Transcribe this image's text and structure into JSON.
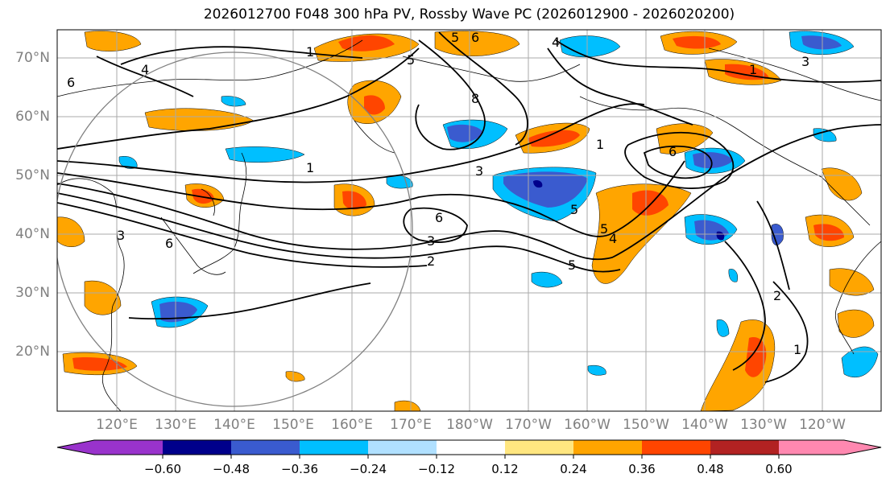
{
  "title": "2026012700 F048 300 hPa PV, Rossby Wave PC (2026012900 - 2026020200)",
  "lat_labels": [
    "70°N",
    "60°N",
    "50°N",
    "40°N",
    "30°N",
    "20°N"
  ],
  "lon_labels": [
    "120°E",
    "130°E",
    "140°E",
    "150°E",
    "160°E",
    "170°E",
    "180°W",
    "170°W",
    "160°W",
    "150°W",
    "140°W",
    "130°W",
    "120°W"
  ],
  "colorbar": {
    "ticks": [
      "−0.60",
      "−0.48",
      "−0.36",
      "−0.24",
      "−0.12",
      "0.12",
      "0.24",
      "0.36",
      "0.48",
      "0.60"
    ],
    "colors": [
      "#9933cc",
      "#00008b",
      "#3a5bcf",
      "#00bfff",
      "#b0e0ff",
      "#ffffff",
      "#ffe680",
      "#ffa500",
      "#ff4500",
      "#b22222",
      "#ff88b0"
    ]
  },
  "contour_labels": [
    "1",
    "4",
    "6",
    "5",
    "6",
    "5",
    "8",
    "4",
    "3",
    "1",
    "3",
    "6",
    "1",
    "3",
    "6",
    "3",
    "2",
    "5",
    "1",
    "6",
    "5",
    "4",
    "5",
    "2",
    "1"
  ]
}
